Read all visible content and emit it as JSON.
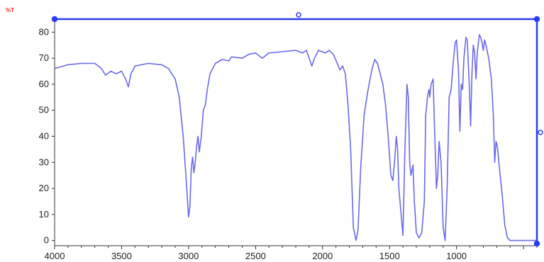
{
  "colors": {
    "trace": "#6a6ae8",
    "frame": "#2a3cf0",
    "unit_label": "#ff2a2a",
    "axis": "#333333",
    "background": "#ffffff"
  },
  "chart_data": {
    "type": "line",
    "title": "",
    "xlabel": "",
    "ylabel": "%T",
    "xlim": [
      4000,
      400
    ],
    "ylim": [
      -2,
      85
    ],
    "x_reversed": true,
    "grid": false,
    "x_ticks": [
      4000,
      3500,
      3000,
      2500,
      2000,
      1500,
      1000
    ],
    "y_ticks": [
      0,
      10,
      20,
      30,
      40,
      50,
      60,
      70,
      80
    ],
    "series": [
      {
        "name": "",
        "points": [
          [
            4000,
            66
          ],
          [
            3900,
            67.5
          ],
          [
            3800,
            68
          ],
          [
            3700,
            68
          ],
          [
            3650,
            66
          ],
          [
            3620,
            63.5
          ],
          [
            3580,
            65
          ],
          [
            3540,
            64
          ],
          [
            3500,
            65
          ],
          [
            3470,
            62
          ],
          [
            3450,
            59
          ],
          [
            3430,
            64
          ],
          [
            3400,
            67
          ],
          [
            3300,
            68
          ],
          [
            3200,
            67.5
          ],
          [
            3150,
            66
          ],
          [
            3100,
            62
          ],
          [
            3070,
            55
          ],
          [
            3040,
            40
          ],
          [
            3020,
            25
          ],
          [
            3000,
            9
          ],
          [
            2990,
            13
          ],
          [
            2980,
            28
          ],
          [
            2970,
            32
          ],
          [
            2960,
            26
          ],
          [
            2950,
            30
          ],
          [
            2940,
            36
          ],
          [
            2930,
            40
          ],
          [
            2920,
            34
          ],
          [
            2905,
            40
          ],
          [
            2890,
            50
          ],
          [
            2875,
            52
          ],
          [
            2860,
            58
          ],
          [
            2840,
            64
          ],
          [
            2800,
            68
          ],
          [
            2750,
            69.5
          ],
          [
            2700,
            69
          ],
          [
            2680,
            70.5
          ],
          [
            2600,
            70
          ],
          [
            2550,
            71.5
          ],
          [
            2500,
            72
          ],
          [
            2450,
            70
          ],
          [
            2400,
            72
          ],
          [
            2300,
            72.5
          ],
          [
            2200,
            73
          ],
          [
            2150,
            72
          ],
          [
            2120,
            73
          ],
          [
            2100,
            70
          ],
          [
            2080,
            67
          ],
          [
            2060,
            70
          ],
          [
            2030,
            73
          ],
          [
            1980,
            72
          ],
          [
            1950,
            73
          ],
          [
            1920,
            71.5
          ],
          [
            1890,
            68
          ],
          [
            1870,
            65.5
          ],
          [
            1850,
            67
          ],
          [
            1830,
            64
          ],
          [
            1810,
            52
          ],
          [
            1790,
            35
          ],
          [
            1770,
            5
          ],
          [
            1750,
            0
          ],
          [
            1735,
            4
          ],
          [
            1715,
            28
          ],
          [
            1690,
            48
          ],
          [
            1660,
            58
          ],
          [
            1630,
            66
          ],
          [
            1610,
            69.5
          ],
          [
            1590,
            68
          ],
          [
            1570,
            64
          ],
          [
            1550,
            60
          ],
          [
            1530,
            52
          ],
          [
            1510,
            40
          ],
          [
            1490,
            25
          ],
          [
            1475,
            23
          ],
          [
            1460,
            32
          ],
          [
            1450,
            40
          ],
          [
            1440,
            35
          ],
          [
            1430,
            20
          ],
          [
            1410,
            8
          ],
          [
            1400,
            2
          ],
          [
            1385,
            35
          ],
          [
            1370,
            60
          ],
          [
            1360,
            55
          ],
          [
            1350,
            30
          ],
          [
            1340,
            25
          ],
          [
            1325,
            29
          ],
          [
            1315,
            15
          ],
          [
            1300,
            3
          ],
          [
            1280,
            1
          ],
          [
            1260,
            3
          ],
          [
            1240,
            15
          ],
          [
            1230,
            48
          ],
          [
            1215,
            56
          ],
          [
            1205,
            58
          ],
          [
            1200,
            55
          ],
          [
            1190,
            60
          ],
          [
            1175,
            62
          ],
          [
            1165,
            45
          ],
          [
            1150,
            20
          ],
          [
            1140,
            25
          ],
          [
            1130,
            38
          ],
          [
            1115,
            30
          ],
          [
            1100,
            5
          ],
          [
            1085,
            0
          ],
          [
            1070,
            20
          ],
          [
            1055,
            55
          ],
          [
            1040,
            58
          ],
          [
            1025,
            68
          ],
          [
            1010,
            76
          ],
          [
            1000,
            77
          ],
          [
            985,
            65
          ],
          [
            975,
            42
          ],
          [
            965,
            60
          ],
          [
            955,
            58
          ],
          [
            945,
            70
          ],
          [
            930,
            78
          ],
          [
            920,
            77
          ],
          [
            905,
            60
          ],
          [
            895,
            44
          ],
          [
            885,
            64
          ],
          [
            875,
            75
          ],
          [
            865,
            72
          ],
          [
            855,
            62
          ],
          [
            845,
            72
          ],
          [
            830,
            79
          ],
          [
            820,
            78
          ],
          [
            810,
            76
          ],
          [
            800,
            73
          ],
          [
            790,
            77
          ],
          [
            780,
            75
          ],
          [
            760,
            70
          ],
          [
            740,
            62
          ],
          [
            725,
            48
          ],
          [
            715,
            30
          ],
          [
            705,
            38
          ],
          [
            695,
            36
          ],
          [
            680,
            28
          ],
          [
            660,
            18
          ],
          [
            640,
            6
          ],
          [
            620,
            1
          ],
          [
            600,
            0
          ],
          [
            580,
            0
          ],
          [
            560,
            0
          ],
          [
            540,
            0
          ],
          [
            520,
            0
          ],
          [
            500,
            0
          ],
          [
            480,
            0
          ],
          [
            460,
            0
          ],
          [
            440,
            0
          ],
          [
            420,
            0
          ],
          [
            400,
            0
          ]
        ]
      }
    ]
  }
}
